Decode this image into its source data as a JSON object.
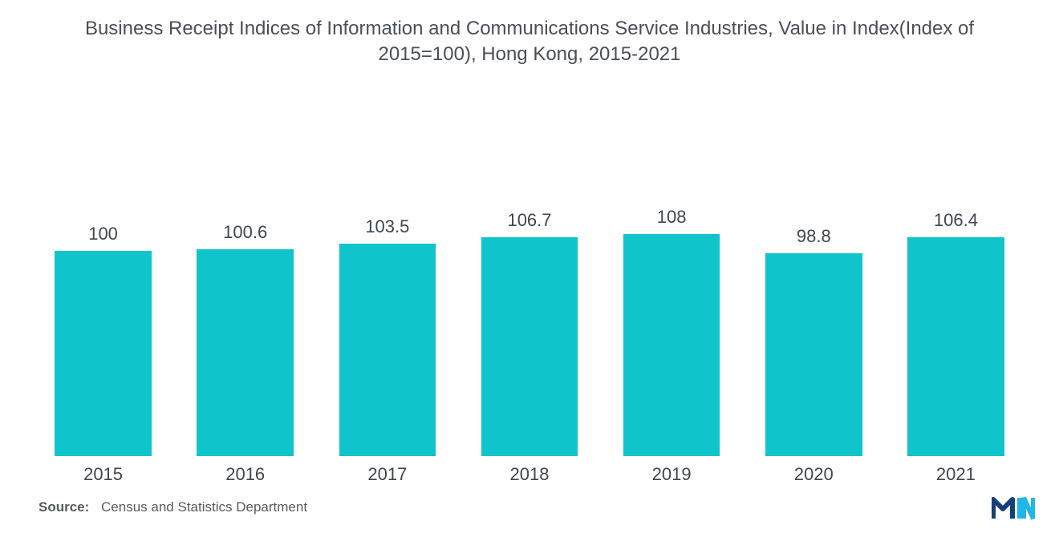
{
  "title": "Business Receipt Indices of Information and Communications Service Industries, Value in Index(Index of 2015=100), Hong Kong, 2015-2021",
  "title_color": "#4a4f55",
  "title_fontsize": 24,
  "chart": {
    "type": "bar",
    "categories": [
      "2015",
      "2016",
      "2017",
      "2018",
      "2019",
      "2020",
      "2021"
    ],
    "values": [
      100,
      100.6,
      103.5,
      106.7,
      108,
      98.8,
      106.4
    ],
    "value_labels": [
      "100",
      "100.6",
      "103.5",
      "106.7",
      "108",
      "98.8",
      "106.4"
    ],
    "bar_color": "#10c4cc",
    "value_label_color": "#3f464d",
    "value_label_fontsize": 22,
    "category_label_color": "#3f464d",
    "category_label_fontsize": 22,
    "ylim": [
      0,
      160
    ],
    "background_color": "#ffffff",
    "bar_width_ratio": 0.68
  },
  "source": {
    "label": "Source:",
    "text": "Census and Statistics Department"
  },
  "logo": {
    "colors": [
      "#163f7a",
      "#1fb8e6"
    ]
  }
}
